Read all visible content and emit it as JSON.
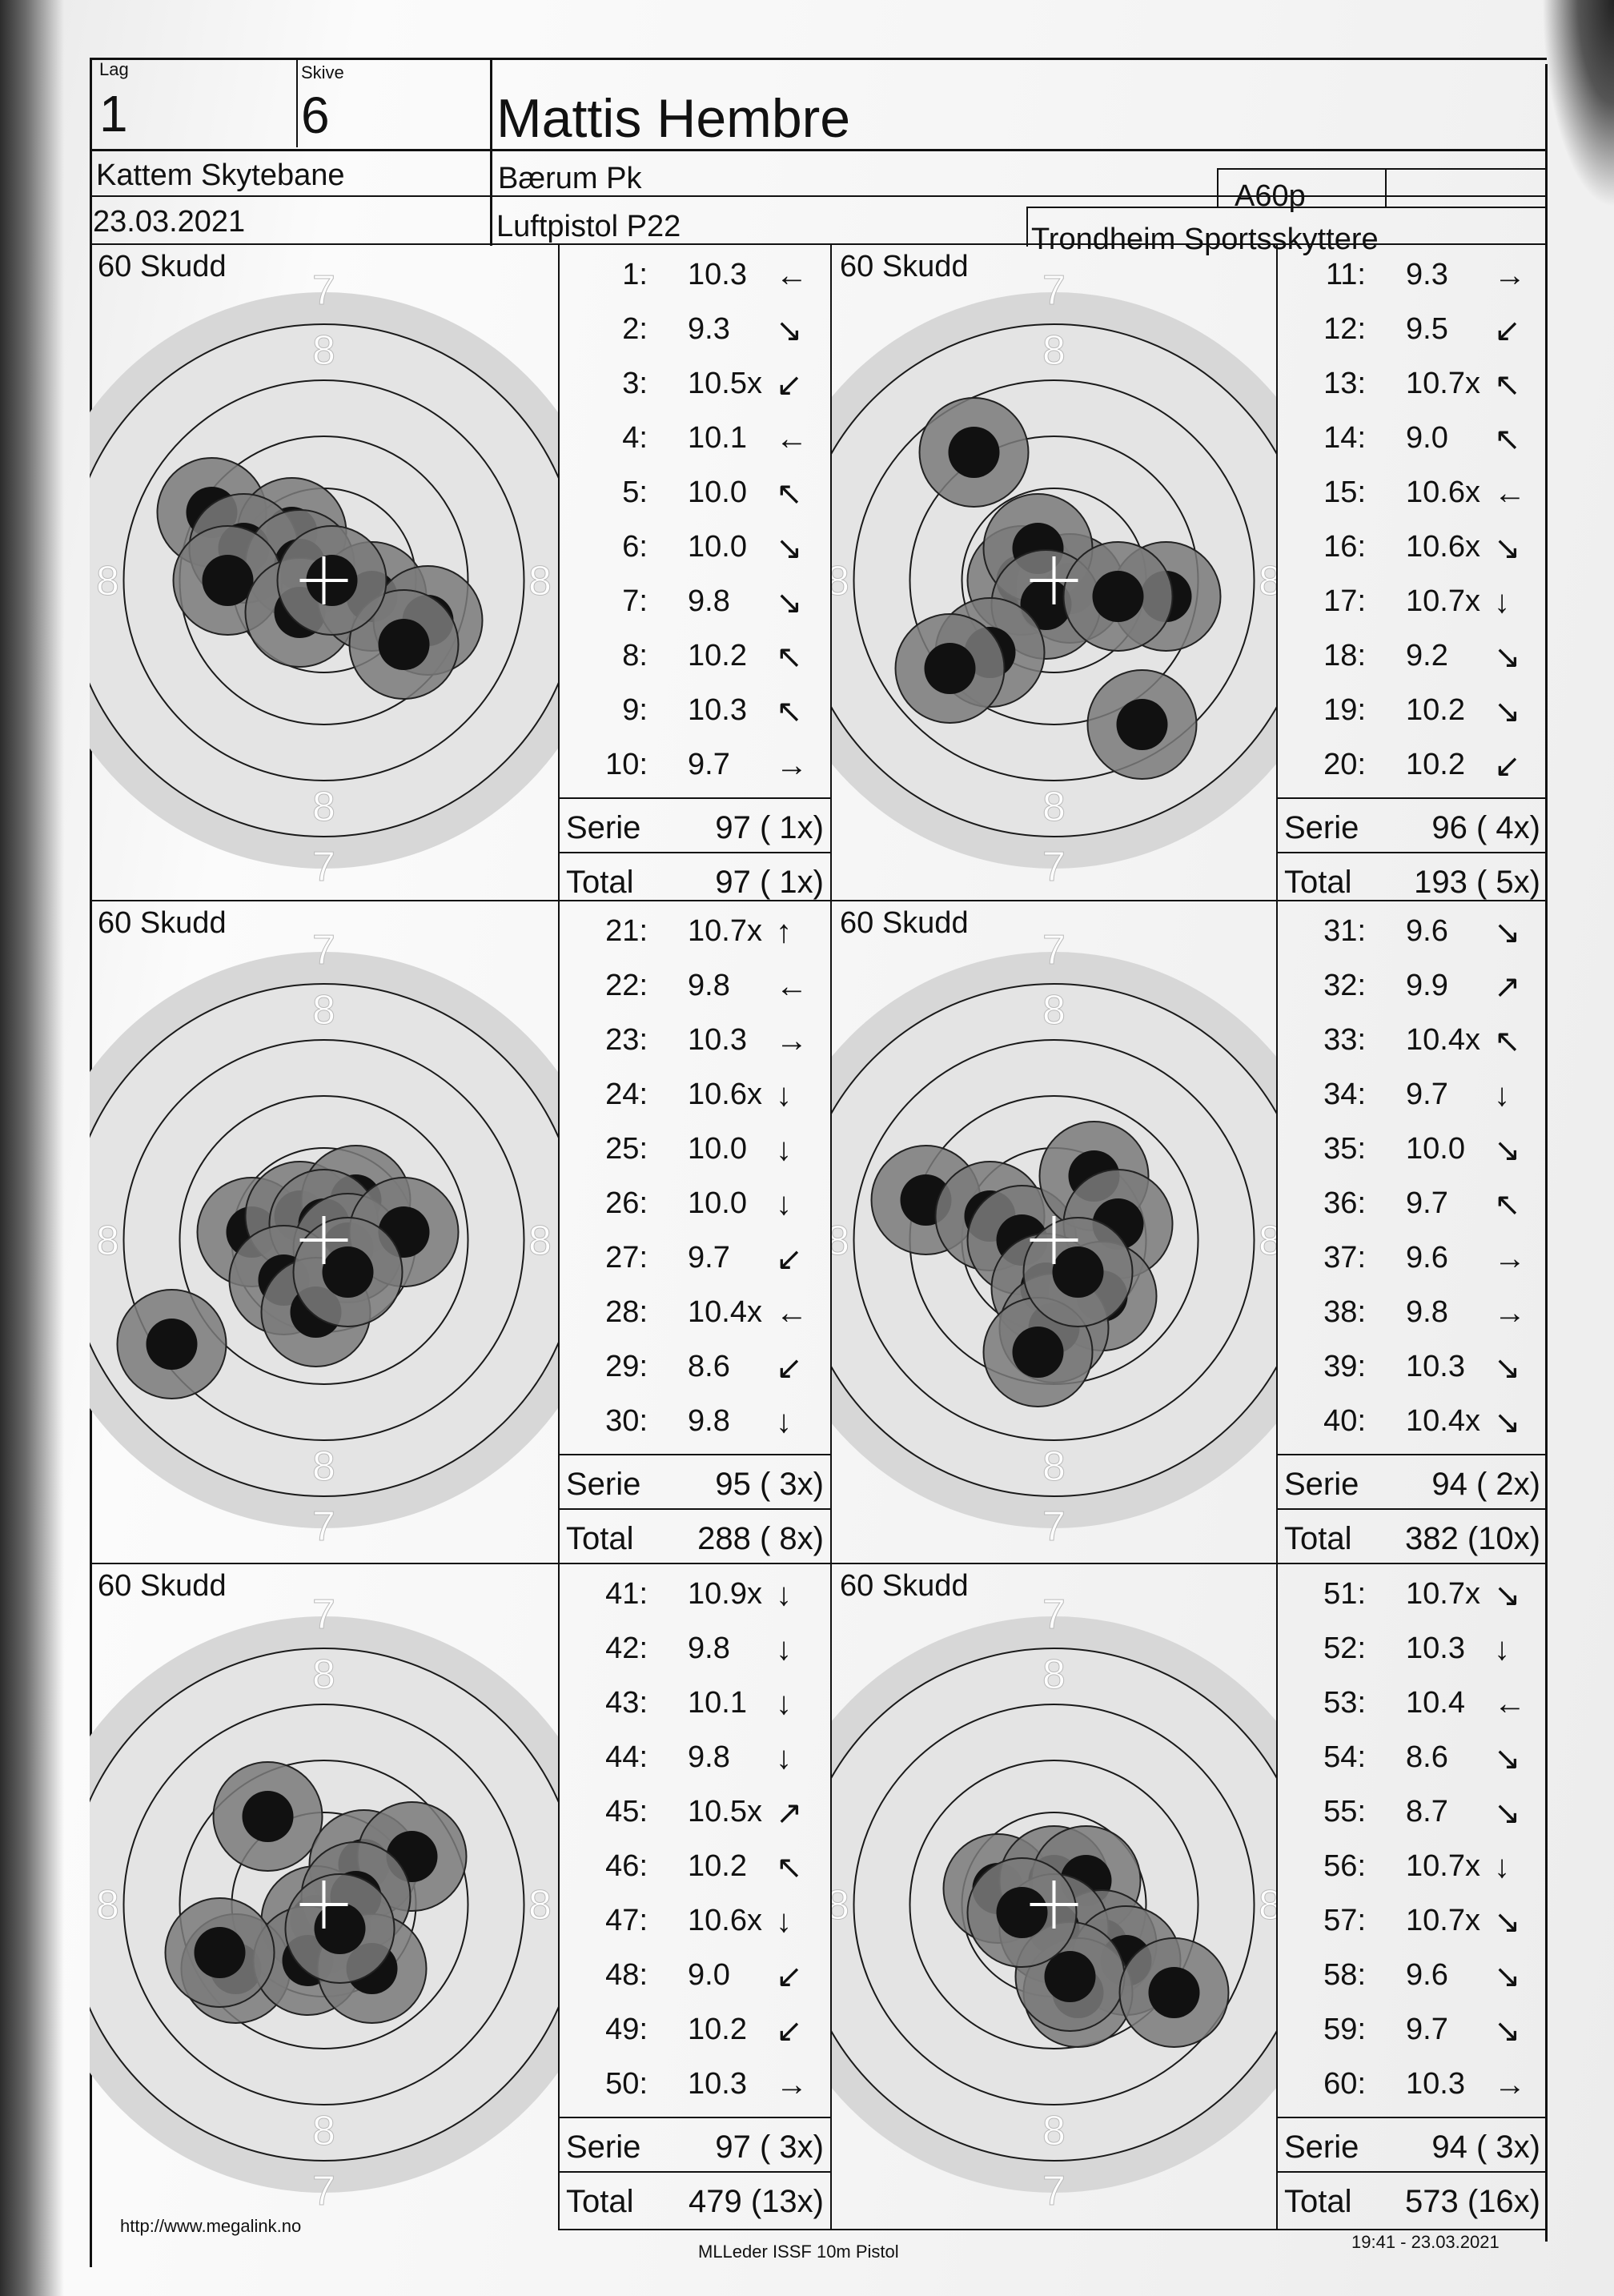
{
  "header": {
    "lag_label": "Lag",
    "lag_value": "1",
    "skive_label": "Skive",
    "skive_value": "6",
    "shooter_name": "Mattis Hembre",
    "range": "Kattem Skytebane",
    "club": "Bærum Pk",
    "date": "23.03.2021",
    "event": "Luftpistol P22",
    "class": "A60p",
    "organizer": "Trondheim Sportsskyttere"
  },
  "target_label": "60 Skudd",
  "ring_labels": {
    "seven": "7",
    "eight": "8"
  },
  "series": [
    {
      "shots": [
        {
          "n": "1:",
          "v": "10.3",
          "a": "←"
        },
        {
          "n": "2:",
          "v": "9.3",
          "a": "↘"
        },
        {
          "n": "3:",
          "v": "10.5x",
          "a": "↙"
        },
        {
          "n": "4:",
          "v": "10.1",
          "a": "←"
        },
        {
          "n": "5:",
          "v": "10.0",
          "a": "↖"
        },
        {
          "n": "6:",
          "v": "10.0",
          "a": "↘"
        },
        {
          "n": "7:",
          "v": "9.8",
          "a": "↘"
        },
        {
          "n": "8:",
          "v": "10.2",
          "a": "↖"
        },
        {
          "n": "9:",
          "v": "10.3",
          "a": "↖"
        },
        {
          "n": "10:",
          "v": "9.7",
          "a": "→"
        }
      ],
      "serie_label": "Serie",
      "serie_value": "97 ( 1x)",
      "total_label": "Total",
      "total_value": "97 ( 1x)"
    },
    {
      "shots": [
        {
          "n": "11:",
          "v": "9.3",
          "a": "→"
        },
        {
          "n": "12:",
          "v": "9.5",
          "a": "↙"
        },
        {
          "n": "13:",
          "v": "10.7x",
          "a": "↖"
        },
        {
          "n": "14:",
          "v": "9.0",
          "a": "↖"
        },
        {
          "n": "15:",
          "v": "10.6x",
          "a": "←"
        },
        {
          "n": "16:",
          "v": "10.6x",
          "a": "↘"
        },
        {
          "n": "17:",
          "v": "10.7x",
          "a": "↓"
        },
        {
          "n": "18:",
          "v": "9.2",
          "a": "↘"
        },
        {
          "n": "19:",
          "v": "10.2",
          "a": "↘"
        },
        {
          "n": "20:",
          "v": "10.2",
          "a": "↙"
        }
      ],
      "serie_label": "Serie",
      "serie_value": "96 ( 4x)",
      "total_label": "Total",
      "total_value": "193 ( 5x)"
    },
    {
      "shots": [
        {
          "n": "21:",
          "v": "10.7x",
          "a": "↑"
        },
        {
          "n": "22:",
          "v": "9.8",
          "a": "←"
        },
        {
          "n": "23:",
          "v": "10.3",
          "a": "→"
        },
        {
          "n": "24:",
          "v": "10.6x",
          "a": "↓"
        },
        {
          "n": "25:",
          "v": "10.0",
          "a": "↓"
        },
        {
          "n": "26:",
          "v": "10.0",
          "a": "↓"
        },
        {
          "n": "27:",
          "v": "9.7",
          "a": "↙"
        },
        {
          "n": "28:",
          "v": "10.4x",
          "a": "←"
        },
        {
          "n": "29:",
          "v": "8.6",
          "a": "↙"
        },
        {
          "n": "30:",
          "v": "9.8",
          "a": "↓"
        }
      ],
      "serie_label": "Serie",
      "serie_value": "95 ( 3x)",
      "total_label": "Total",
      "total_value": "288 ( 8x)"
    },
    {
      "shots": [
        {
          "n": "31:",
          "v": "9.6",
          "a": "↘"
        },
        {
          "n": "32:",
          "v": "9.9",
          "a": "↗"
        },
        {
          "n": "33:",
          "v": "10.4x",
          "a": "↖"
        },
        {
          "n": "34:",
          "v": "9.7",
          "a": "↓"
        },
        {
          "n": "35:",
          "v": "10.0",
          "a": "↘"
        },
        {
          "n": "36:",
          "v": "9.7",
          "a": "↖"
        },
        {
          "n": "37:",
          "v": "9.6",
          "a": "→"
        },
        {
          "n": "38:",
          "v": "9.8",
          "a": "→"
        },
        {
          "n": "39:",
          "v": "10.3",
          "a": "↘"
        },
        {
          "n": "40:",
          "v": "10.4x",
          "a": "↘"
        }
      ],
      "serie_label": "Serie",
      "serie_value": "94 ( 2x)",
      "total_label": "Total",
      "total_value": "382 (10x)"
    },
    {
      "shots": [
        {
          "n": "41:",
          "v": "10.9x",
          "a": "↓"
        },
        {
          "n": "42:",
          "v": "9.8",
          "a": "↓"
        },
        {
          "n": "43:",
          "v": "10.1",
          "a": "↓"
        },
        {
          "n": "44:",
          "v": "9.8",
          "a": "↓"
        },
        {
          "n": "45:",
          "v": "10.5x",
          "a": "↗"
        },
        {
          "n": "46:",
          "v": "10.2",
          "a": "↖"
        },
        {
          "n": "47:",
          "v": "10.6x",
          "a": "↓"
        },
        {
          "n": "48:",
          "v": "9.0",
          "a": "↙"
        },
        {
          "n": "49:",
          "v": "10.2",
          "a": "↙"
        },
        {
          "n": "50:",
          "v": "10.3",
          "a": "→"
        }
      ],
      "serie_label": "Serie",
      "serie_value": "97 ( 3x)",
      "total_label": "Total",
      "total_value": "479 (13x)"
    },
    {
      "shots": [
        {
          "n": "51:",
          "v": "10.7x",
          "a": "↘"
        },
        {
          "n": "52:",
          "v": "10.3",
          "a": "↓"
        },
        {
          "n": "53:",
          "v": "10.4",
          "a": "←"
        },
        {
          "n": "54:",
          "v": "8.6",
          "a": "↘"
        },
        {
          "n": "55:",
          "v": "8.7",
          "a": "↘"
        },
        {
          "n": "56:",
          "v": "10.7x",
          "a": "↓"
        },
        {
          "n": "57:",
          "v": "10.7x",
          "a": "↘"
        },
        {
          "n": "58:",
          "v": "9.6",
          "a": "↘"
        },
        {
          "n": "59:",
          "v": "9.7",
          "a": "↘"
        },
        {
          "n": "60:",
          "v": "10.3",
          "a": "→"
        }
      ],
      "serie_label": "Serie",
      "serie_value": "94 ( 3x)",
      "total_label": "Total",
      "total_value": "573 (16x)"
    }
  ],
  "footer": {
    "url": "http://www.megalink.no",
    "software": "MLLeder ISSF 10m Pistol",
    "timestamp": "19:41 - 23.03.2021"
  }
}
